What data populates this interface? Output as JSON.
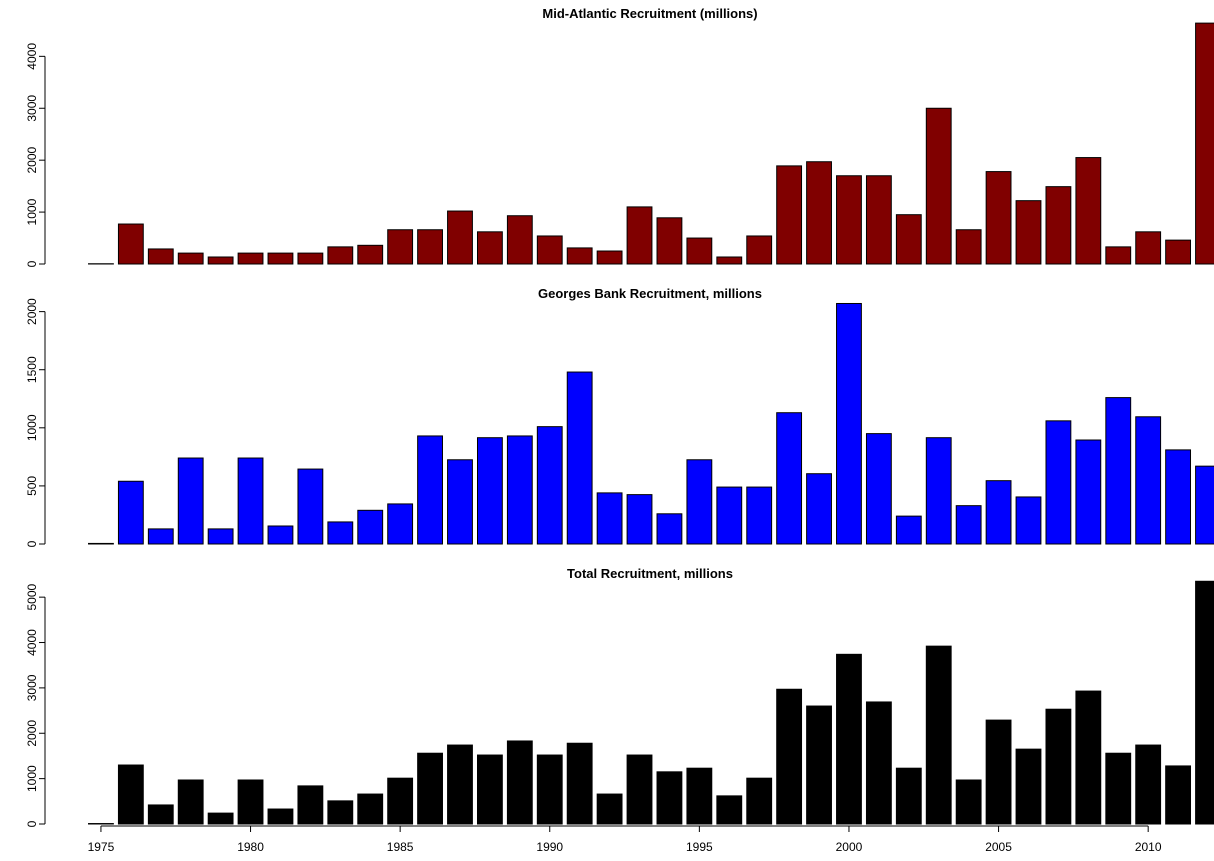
{
  "chart_data": [
    {
      "type": "bar",
      "title": "Mid-Atlantic Recruitment (millions)",
      "color": "#800000",
      "edge": "#000000",
      "x": [
        1975,
        1976,
        1977,
        1978,
        1979,
        1980,
        1981,
        1982,
        1983,
        1984,
        1985,
        1986,
        1987,
        1988,
        1989,
        1990,
        1991,
        1992,
        1993,
        1994,
        1995,
        1996,
        1997,
        1998,
        1999,
        2000,
        2001,
        2002,
        2003,
        2004,
        2005,
        2006,
        2007,
        2008,
        2009,
        2010,
        2011,
        2012
      ],
      "values": [
        5,
        770,
        290,
        210,
        135,
        210,
        210,
        210,
        330,
        360,
        660,
        660,
        1020,
        620,
        930,
        540,
        310,
        250,
        1100,
        890,
        500,
        135,
        540,
        1890,
        1970,
        1700,
        1700,
        950,
        3000,
        660,
        1780,
        1220,
        1490,
        2050,
        330,
        620,
        460,
        4640
      ],
      "xlim": [
        1974.2,
        2012.2
      ],
      "ylim": [
        0,
        4700
      ],
      "yticks": [
        0,
        1000,
        2000,
        3000,
        4000
      ]
    },
    {
      "type": "bar",
      "title": "Georges Bank Recruitment, millions",
      "color": "#0000ff",
      "edge": "#000000",
      "x": [
        1975,
        1976,
        1977,
        1978,
        1979,
        1980,
        1981,
        1982,
        1983,
        1984,
        1985,
        1986,
        1987,
        1988,
        1989,
        1990,
        1991,
        1992,
        1993,
        1994,
        1995,
        1996,
        1997,
        1998,
        1999,
        2000,
        2001,
        2002,
        2003,
        2004,
        2005,
        2006,
        2007,
        2008,
        2009,
        2010,
        2011,
        2012
      ],
      "values": [
        5,
        540,
        130,
        740,
        130,
        740,
        155,
        645,
        190,
        290,
        345,
        930,
        725,
        915,
        930,
        1010,
        1480,
        440,
        425,
        260,
        725,
        490,
        490,
        1130,
        605,
        2070,
        950,
        240,
        915,
        330,
        545,
        405,
        1060,
        895,
        1260,
        1095,
        810,
        670
      ],
      "xlim": [
        1974.2,
        2012.2
      ],
      "ylim": [
        0,
        2100
      ],
      "yticks": [
        0,
        500,
        1000,
        1500,
        2000
      ]
    },
    {
      "type": "bar",
      "title": "Total Recruitment, millions",
      "color": "#000000",
      "edge": "#000000",
      "x": [
        1975,
        1976,
        1977,
        1978,
        1979,
        1980,
        1981,
        1982,
        1983,
        1984,
        1985,
        1986,
        1987,
        1988,
        1989,
        1990,
        1991,
        1992,
        1993,
        1994,
        1995,
        1996,
        1997,
        1998,
        1999,
        2000,
        2001,
        2002,
        2003,
        2004,
        2005,
        2006,
        2007,
        2008,
        2009,
        2010,
        2011,
        2012
      ],
      "values": [
        10,
        1300,
        420,
        970,
        240,
        970,
        330,
        840,
        510,
        660,
        1010,
        1560,
        1740,
        1520,
        1830,
        1520,
        1780,
        660,
        1520,
        1150,
        1230,
        620,
        1010,
        2970,
        2600,
        3740,
        2690,
        1230,
        3920,
        970,
        2290,
        1650,
        2530,
        2930,
        1560,
        1740,
        1280,
        5350
      ],
      "xlim": [
        1974.2,
        2012.2
      ],
      "ylim": [
        0,
        5400
      ],
      "yticks": [
        0,
        1000,
        2000,
        3000,
        4000,
        5000
      ],
      "xticks": [
        1975,
        1980,
        1985,
        1990,
        1995,
        2000,
        2005,
        2010
      ]
    }
  ]
}
